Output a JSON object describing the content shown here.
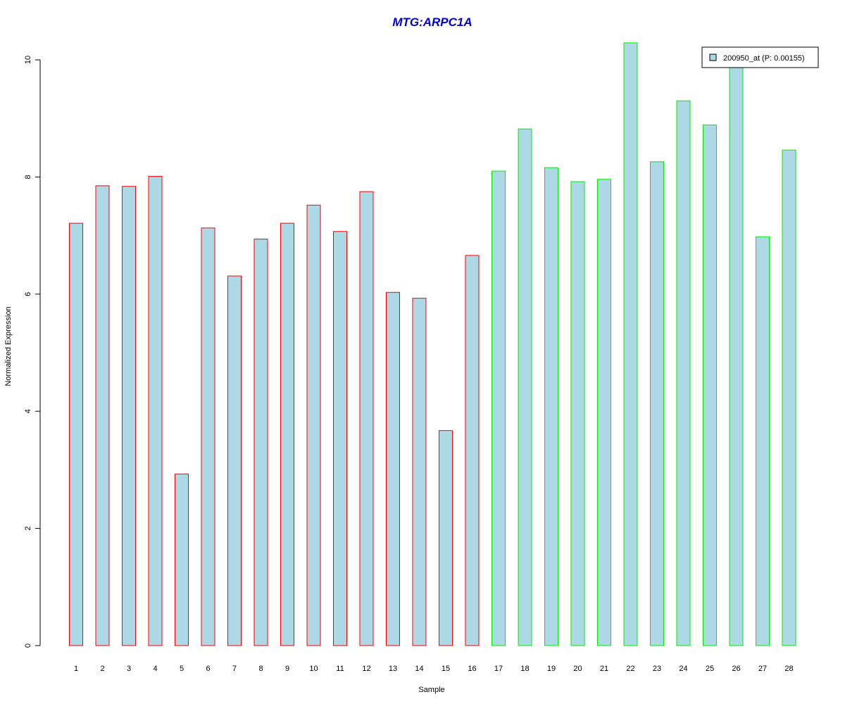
{
  "chart_data": {
    "type": "bar",
    "title": "MTG:ARPC1A",
    "xlabel": "Sample",
    "ylabel": "Normalized Expression",
    "categories": [
      "1",
      "2",
      "3",
      "4",
      "5",
      "6",
      "7",
      "8",
      "9",
      "10",
      "11",
      "12",
      "13",
      "14",
      "15",
      "16",
      "17",
      "18",
      "19",
      "20",
      "21",
      "22",
      "23",
      "24",
      "25",
      "26",
      "27",
      "28"
    ],
    "series": [
      {
        "name": "200950_at (P: 0.00155)",
        "values": [
          7.21,
          7.85,
          7.84,
          8.01,
          2.93,
          7.13,
          6.31,
          6.94,
          7.21,
          7.52,
          7.07,
          7.75,
          6.03,
          5.93,
          3.67,
          6.66,
          8.1,
          8.82,
          8.16,
          7.92,
          7.96,
          10.29,
          8.26,
          9.3,
          8.89,
          9.87,
          6.98,
          8.46
        ]
      }
    ],
    "group_border_colors": [
      "#ff0000",
      "#ff0000",
      "#ff0000",
      "#ff0000",
      "#ff0000",
      "#ff0000",
      "#ff0000",
      "#ff0000",
      "#ff0000",
      "#ff0000",
      "#ff0000",
      "#ff0000",
      "#ff0000",
      "#ff0000",
      "#ff0000",
      "#ff0000",
      "#00ee00",
      "#00ee00",
      "#00ee00",
      "#00ee00",
      "#00ee00",
      "#00ee00",
      "#00ee00",
      "#00ee00",
      "#00ee00",
      "#00ee00",
      "#00ee00",
      "#00ee00"
    ],
    "bar_fill": "#add8e6",
    "title_color": "#0000cc",
    "yticks": [
      0,
      2,
      4,
      6,
      8,
      10
    ],
    "ylim": [
      0,
      10.3
    ],
    "grid": false,
    "legend_position": "top-right"
  }
}
